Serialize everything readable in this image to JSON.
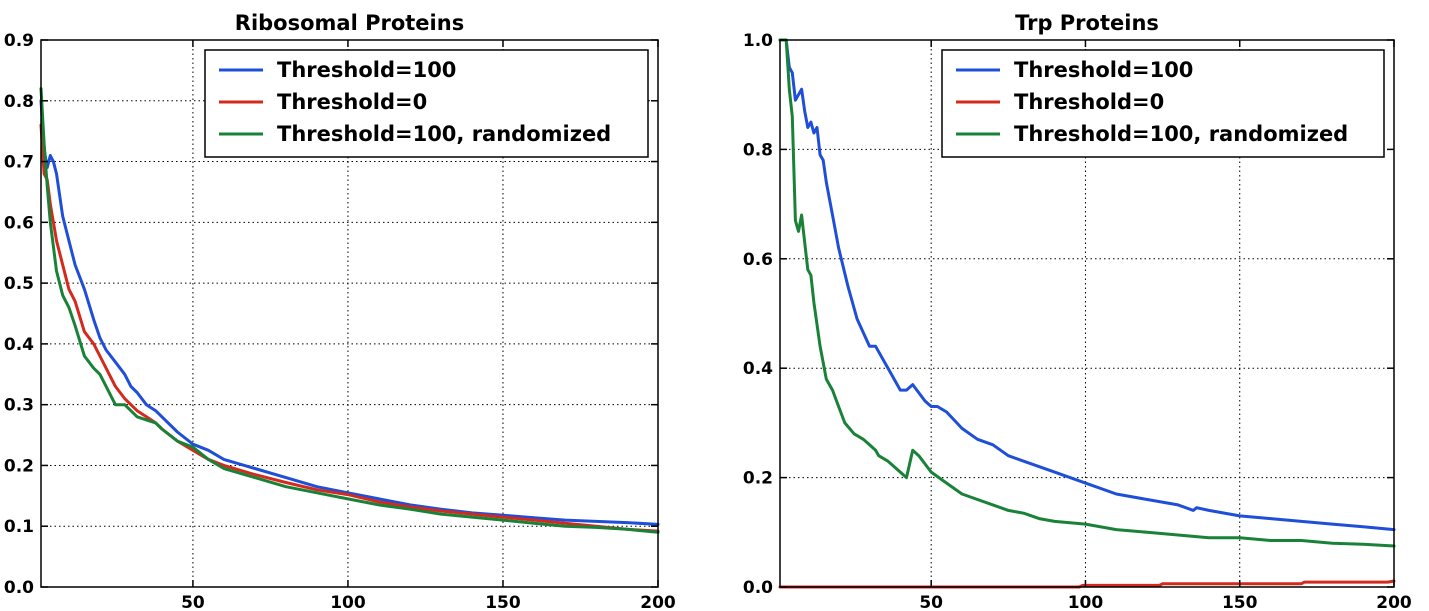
{
  "chart_data": [
    {
      "type": "line",
      "title": "Ribosomal Proteins",
      "xlim": [
        1,
        200
      ],
      "ylim": [
        0,
        0.9
      ],
      "xticks": [
        50,
        100,
        150,
        200
      ],
      "xtick_labels": [
        "50",
        "100",
        "150",
        "200"
      ],
      "yticks": [
        0.0,
        0.1,
        0.2,
        0.3,
        0.4,
        0.5,
        0.6,
        0.7,
        0.8,
        0.9
      ],
      "ytick_labels": [
        "0.0",
        "0.1",
        "0.2",
        "0.3",
        "0.4",
        "0.5",
        "0.6",
        "0.7",
        "0.8",
        "0.9"
      ],
      "grid": true,
      "legend_position": "top-right",
      "series": [
        {
          "name": "Threshold=100",
          "color": "#1f4fd8",
          "x": [
            1,
            2,
            3,
            4,
            5,
            6,
            8,
            10,
            12,
            15,
            18,
            20,
            22,
            25,
            28,
            30,
            32,
            35,
            38,
            40,
            45,
            50,
            55,
            60,
            70,
            80,
            90,
            100,
            110,
            120,
            130,
            140,
            150,
            160,
            170,
            180,
            190,
            200
          ],
          "y": [
            0.8,
            0.72,
            0.69,
            0.71,
            0.7,
            0.68,
            0.61,
            0.57,
            0.53,
            0.49,
            0.44,
            0.41,
            0.39,
            0.37,
            0.35,
            0.33,
            0.32,
            0.3,
            0.29,
            0.28,
            0.255,
            0.235,
            0.225,
            0.21,
            0.195,
            0.18,
            0.165,
            0.155,
            0.145,
            0.135,
            0.128,
            0.122,
            0.118,
            0.114,
            0.11,
            0.108,
            0.106,
            0.103
          ]
        },
        {
          "name": "Threshold=0",
          "color": "#d42a1e",
          "x": [
            1,
            2,
            3,
            4,
            5,
            6,
            8,
            10,
            12,
            15,
            18,
            20,
            22,
            25,
            28,
            30,
            32,
            35,
            38,
            40,
            45,
            50,
            55,
            60,
            70,
            80,
            90,
            100,
            110,
            120,
            130,
            140,
            150,
            160,
            170,
            180,
            190,
            200
          ],
          "y": [
            0.76,
            0.68,
            0.67,
            0.63,
            0.6,
            0.57,
            0.53,
            0.49,
            0.47,
            0.42,
            0.4,
            0.38,
            0.36,
            0.33,
            0.31,
            0.3,
            0.29,
            0.28,
            0.27,
            0.26,
            0.24,
            0.225,
            0.21,
            0.2,
            0.185,
            0.172,
            0.16,
            0.152,
            0.14,
            0.132,
            0.125,
            0.12,
            0.115,
            0.11,
            0.105,
            0.1,
            0.095,
            0.092
          ]
        },
        {
          "name": "Threshold=100, randomized",
          "color": "#1a8238",
          "x": [
            1,
            2,
            3,
            4,
            5,
            6,
            8,
            10,
            12,
            15,
            18,
            20,
            22,
            25,
            28,
            30,
            32,
            35,
            38,
            40,
            45,
            50,
            55,
            60,
            70,
            80,
            90,
            100,
            110,
            120,
            130,
            140,
            150,
            160,
            170,
            180,
            190,
            200
          ],
          "y": [
            0.82,
            0.73,
            0.66,
            0.6,
            0.56,
            0.52,
            0.48,
            0.46,
            0.43,
            0.38,
            0.36,
            0.35,
            0.33,
            0.3,
            0.3,
            0.29,
            0.28,
            0.275,
            0.27,
            0.26,
            0.24,
            0.23,
            0.21,
            0.195,
            0.18,
            0.165,
            0.155,
            0.145,
            0.135,
            0.128,
            0.12,
            0.115,
            0.11,
            0.105,
            0.1,
            0.098,
            0.095,
            0.09
          ]
        }
      ]
    },
    {
      "type": "line",
      "title": "Trp Proteins",
      "xlim": [
        1,
        200
      ],
      "ylim": [
        0,
        1.0
      ],
      "xticks": [
        50,
        100,
        150,
        200
      ],
      "xtick_labels": [
        "50",
        "100",
        "150",
        "200"
      ],
      "yticks": [
        0.0,
        0.2,
        0.4,
        0.6,
        0.8,
        1.0
      ],
      "ytick_labels": [
        "0.0",
        "0.2",
        "0.4",
        "0.6",
        "0.8",
        "1.0"
      ],
      "grid": true,
      "legend_position": "top-right",
      "series": [
        {
          "name": "Threshold=100",
          "color": "#1f4fd8",
          "x": [
            1,
            3,
            4,
            5,
            6,
            7,
            8,
            9,
            10,
            11,
            12,
            13,
            14,
            15,
            16,
            18,
            20,
            23,
            26,
            30,
            32,
            33,
            36,
            40,
            42,
            44,
            48,
            50,
            52,
            55,
            60,
            65,
            70,
            75,
            80,
            90,
            100,
            110,
            120,
            130,
            135,
            136,
            140,
            150,
            160,
            170,
            180,
            190,
            200
          ],
          "y": [
            1.0,
            1.0,
            0.95,
            0.94,
            0.89,
            0.9,
            0.91,
            0.87,
            0.84,
            0.85,
            0.83,
            0.84,
            0.79,
            0.78,
            0.74,
            0.68,
            0.62,
            0.55,
            0.49,
            0.44,
            0.44,
            0.43,
            0.4,
            0.36,
            0.36,
            0.37,
            0.34,
            0.33,
            0.33,
            0.32,
            0.29,
            0.27,
            0.26,
            0.24,
            0.23,
            0.21,
            0.19,
            0.17,
            0.16,
            0.15,
            0.14,
            0.145,
            0.14,
            0.13,
            0.125,
            0.12,
            0.115,
            0.11,
            0.105
          ]
        },
        {
          "name": "Threshold=0",
          "color": "#d42a1e",
          "x": [
            1,
            98,
            99,
            124,
            125,
            170,
            171,
            198,
            200
          ],
          "y": [
            0.0,
            0.0,
            0.003,
            0.003,
            0.006,
            0.006,
            0.009,
            0.009,
            0.011
          ]
        },
        {
          "name": "Threshold=100, randomized",
          "color": "#1a8238",
          "x": [
            1,
            3,
            4,
            5,
            6,
            7,
            8,
            9,
            10,
            11,
            12,
            13,
            14,
            15,
            16,
            18,
            20,
            22,
            25,
            28,
            30,
            32,
            33,
            36,
            40,
            42,
            44,
            46,
            50,
            55,
            60,
            65,
            70,
            75,
            80,
            85,
            90,
            100,
            110,
            120,
            130,
            140,
            150,
            160,
            170,
            180,
            190,
            200
          ],
          "y": [
            1.0,
            1.0,
            0.91,
            0.86,
            0.67,
            0.65,
            0.68,
            0.63,
            0.58,
            0.57,
            0.52,
            0.48,
            0.44,
            0.41,
            0.38,
            0.36,
            0.33,
            0.3,
            0.28,
            0.27,
            0.26,
            0.25,
            0.24,
            0.23,
            0.21,
            0.2,
            0.25,
            0.24,
            0.21,
            0.19,
            0.17,
            0.16,
            0.15,
            0.14,
            0.135,
            0.125,
            0.12,
            0.115,
            0.105,
            0.1,
            0.095,
            0.09,
            0.09,
            0.085,
            0.085,
            0.08,
            0.078,
            0.075
          ]
        }
      ]
    }
  ]
}
